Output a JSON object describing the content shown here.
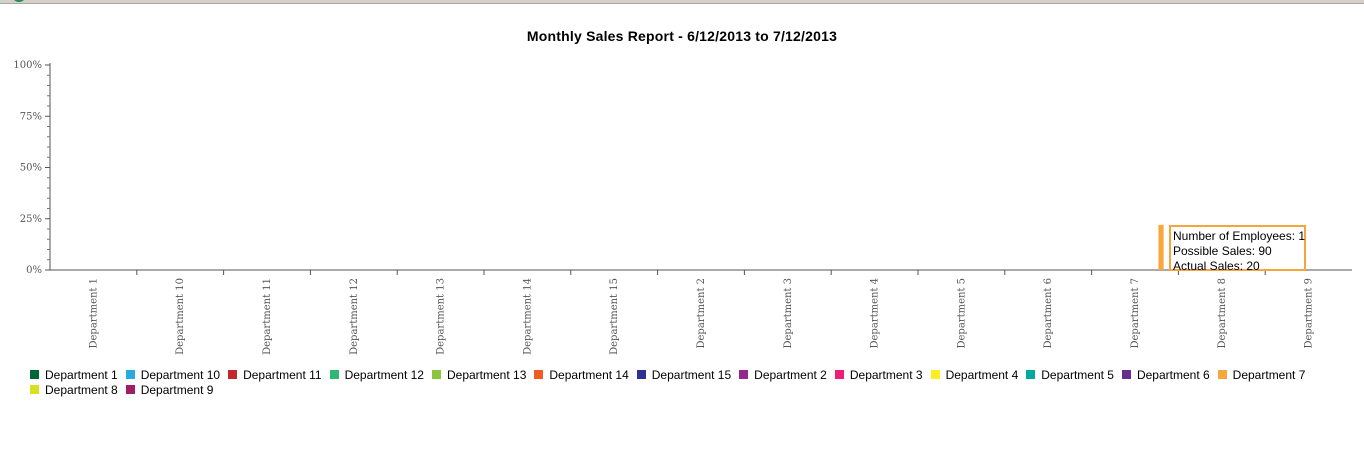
{
  "chart_data": {
    "type": "bar",
    "title": "Monthly Sales Report - 6/12/2013 to 7/12/2013",
    "xlabel": "",
    "ylabel": "",
    "ylim": [
      0,
      100
    ],
    "y_ticks": [
      "0%",
      "25%",
      "50%",
      "75%",
      "100%"
    ],
    "y_tick_values": [
      0,
      25,
      50,
      75,
      100
    ],
    "categories": [
      "Department 1",
      "Department 10",
      "Department 11",
      "Department 12",
      "Department 13",
      "Department 14",
      "Department 15",
      "Department 2",
      "Department 3",
      "Department 4",
      "Department 5",
      "Department 6",
      "Department 7",
      "Department 8",
      "Department 9"
    ],
    "series": [
      {
        "name": "Department 1",
        "color": "#006837",
        "values": [
          0,
          0,
          0,
          0,
          0,
          0,
          0,
          0,
          0,
          0,
          0,
          0,
          0,
          0,
          0
        ]
      },
      {
        "name": "Department 10",
        "color": "#29abe2",
        "values": [
          0,
          0,
          0,
          0,
          0,
          0,
          0,
          0,
          0,
          0,
          0,
          0,
          0,
          0,
          0
        ]
      },
      {
        "name": "Department 11",
        "color": "#c1272d",
        "values": [
          0,
          0,
          0,
          0,
          0,
          0,
          0,
          0,
          0,
          0,
          0,
          0,
          0,
          0,
          0
        ]
      },
      {
        "name": "Department 12",
        "color": "#2eb872",
        "values": [
          0,
          0,
          0,
          0,
          0,
          0,
          0,
          0,
          0,
          0,
          0,
          0,
          0,
          0,
          0
        ]
      },
      {
        "name": "Department 13",
        "color": "#8cc63f",
        "values": [
          0,
          0,
          0,
          0,
          0,
          0,
          0,
          0,
          0,
          0,
          0,
          0,
          0,
          0,
          0
        ]
      },
      {
        "name": "Department 14",
        "color": "#f15a24",
        "values": [
          0,
          0,
          0,
          0,
          0,
          0,
          0,
          0,
          0,
          0,
          0,
          0,
          0,
          0,
          0
        ]
      },
      {
        "name": "Department 15",
        "color": "#2e3192",
        "values": [
          0,
          0,
          0,
          0,
          0,
          0,
          0,
          0,
          0,
          0,
          0,
          0,
          0,
          0,
          0
        ]
      },
      {
        "name": "Department 2",
        "color": "#93278f",
        "values": [
          0,
          0,
          0,
          0,
          0,
          0,
          0,
          0,
          0,
          0,
          0,
          0,
          0,
          0,
          0
        ]
      },
      {
        "name": "Department 3",
        "color": "#ed1e79",
        "values": [
          0,
          0,
          0,
          0,
          0,
          0,
          0,
          0,
          0,
          0,
          0,
          0,
          0,
          0,
          0
        ]
      },
      {
        "name": "Department 4",
        "color": "#fcee21",
        "values": [
          0,
          0,
          0,
          0,
          0,
          0,
          0,
          0,
          0,
          0,
          0,
          0,
          0,
          0,
          0
        ]
      },
      {
        "name": "Department 5",
        "color": "#00a99d",
        "values": [
          0,
          0,
          0,
          0,
          0,
          0,
          0,
          0,
          0,
          0,
          0,
          0,
          0,
          0,
          0
        ]
      },
      {
        "name": "Department 6",
        "color": "#662d91",
        "values": [
          0,
          0,
          0,
          0,
          0,
          0,
          0,
          0,
          0,
          0,
          0,
          0,
          0,
          0,
          0
        ]
      },
      {
        "name": "Department 7",
        "color": "#f7a73b",
        "values": [
          0,
          0,
          0,
          0,
          0,
          0,
          0,
          0,
          0,
          0,
          0,
          0,
          22,
          0,
          0
        ]
      },
      {
        "name": "Department 8",
        "color": "#d9e021",
        "values": [
          0,
          0,
          0,
          0,
          0,
          0,
          0,
          0,
          0,
          0,
          0,
          0,
          0,
          0,
          0
        ]
      },
      {
        "name": "Department 9",
        "color": "#9e1f63",
        "values": [
          0,
          0,
          0,
          0,
          0,
          0,
          0,
          0,
          0,
          0,
          0,
          0,
          0,
          0,
          0
        ]
      }
    ],
    "legend_position": "bottom",
    "grid": false,
    "tooltip": {
      "lines": [
        "Number of Employees: 1",
        "Possible Sales: 90",
        "Actual Sales: 20"
      ],
      "color": "#f7a73b"
    }
  }
}
